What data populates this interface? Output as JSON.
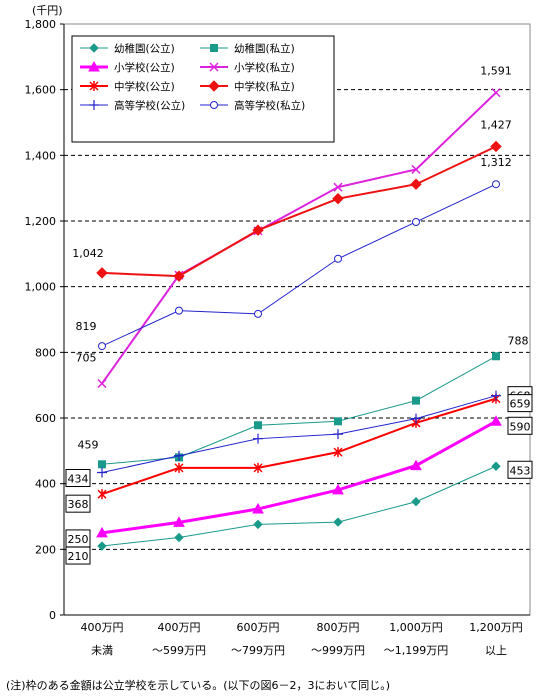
{
  "chart_data": {
    "type": "line",
    "unit_label": "(千円)",
    "ylim": [
      0,
      1800
    ],
    "yticks": [
      0,
      200,
      400,
      600,
      800,
      1000,
      1200,
      1400,
      1600,
      1800
    ],
    "ytick_labels": [
      "0",
      "200",
      "400",
      "600",
      "800",
      "1,000",
      "1,200",
      "1,400",
      "1,600",
      "1,800"
    ],
    "grid": "dashed horizontal",
    "legend_position": "top-left",
    "categories": [
      [
        "400万円",
        "未満"
      ],
      [
        "400万円",
        "～599万円"
      ],
      [
        "600万円",
        "～799万円"
      ],
      [
        "800万円",
        "～999万円"
      ],
      [
        "1,000万円",
        "～1,199万円"
      ],
      [
        "1,200万円",
        "以上"
      ]
    ],
    "series": [
      {
        "name": "幼稚園(公立)",
        "color": "#1a9a8a",
        "marker": "diamond",
        "width": 1,
        "values": [
          210,
          236,
          276,
          283,
          345,
          453
        ]
      },
      {
        "name": "幼稚園(私立)",
        "color": "#1a9a8a",
        "marker": "square",
        "width": 1,
        "values": [
          459,
          480,
          578,
          590,
          653,
          788
        ]
      },
      {
        "name": "小学校(公立)",
        "color": "#ff00ff",
        "marker": "triangle",
        "width": 3,
        "values": [
          250,
          282,
          323,
          381,
          455,
          590
        ]
      },
      {
        "name": "小学校(私立)",
        "color": "#dd22dd",
        "marker": "x",
        "width": 2,
        "values": [
          705,
          1035,
          1170,
          1303,
          1357,
          1591
        ]
      },
      {
        "name": "中学校(公立)",
        "color": "#ff0000",
        "marker": "star",
        "width": 2,
        "values": [
          368,
          448,
          448,
          496,
          585,
          659
        ]
      },
      {
        "name": "中学校(私立)",
        "color": "#ee1111",
        "marker": "diamond-filled",
        "width": 2,
        "values": [
          1042,
          1032,
          1172,
          1268,
          1312,
          1427
        ]
      },
      {
        "name": "高等学校(公立)",
        "color": "#2222cc",
        "marker": "plus",
        "width": 1,
        "values": [
          434,
          485,
          537,
          551,
          598,
          668
        ]
      },
      {
        "name": "高等学校(私立)",
        "color": "#2222cc",
        "marker": "circle",
        "width": 1,
        "values": [
          819,
          927,
          917,
          1085,
          1197,
          1312
        ]
      }
    ],
    "annotations": {
      "plain": [
        {
          "text": "1,591",
          "series": 3,
          "point": 5
        },
        {
          "text": "1,427",
          "series": 5,
          "point": 5
        },
        {
          "text": "1,312",
          "series": 7,
          "point": 5
        },
        {
          "text": "1,042",
          "series": 5,
          "point": 0
        },
        {
          "text": "819",
          "series": 7,
          "point": 0
        },
        {
          "text": "705",
          "series": 3,
          "point": 0
        },
        {
          "text": "788",
          "series": 1,
          "point": 5
        },
        {
          "text": "459",
          "series": 1,
          "point": 0
        }
      ],
      "boxed": [
        {
          "text": "668",
          "series": 6,
          "point": 5
        },
        {
          "text": "659",
          "series": 4,
          "point": 5
        },
        {
          "text": "590",
          "series": 2,
          "point": 5
        },
        {
          "text": "453",
          "series": 0,
          "point": 5
        },
        {
          "text": "434",
          "series": 6,
          "point": 0
        },
        {
          "text": "368",
          "series": 4,
          "point": 0
        },
        {
          "text": "250",
          "series": 2,
          "point": 0
        },
        {
          "text": "210",
          "series": 0,
          "point": 0
        }
      ]
    }
  },
  "footnote": "(注)枠のある金額は公立学校を示している。(以下の図6－2，3において同じ。)"
}
